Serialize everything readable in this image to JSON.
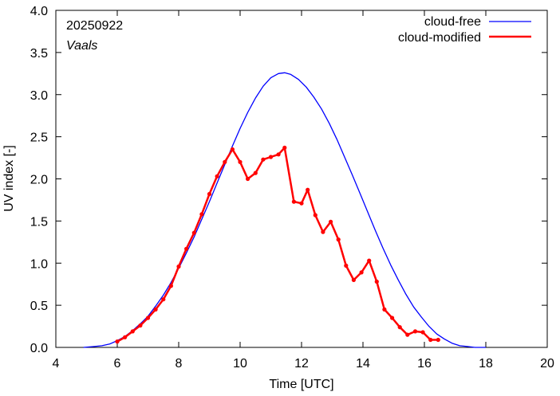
{
  "chart_data": {
    "type": "line",
    "title": "",
    "xlabel": "Time  [UTC]",
    "ylabel": "UV index  [-]",
    "xlim": [
      4,
      20
    ],
    "ylim": [
      0,
      4.0
    ],
    "xticks": [
      4,
      6,
      8,
      10,
      12,
      14,
      16,
      18,
      20
    ],
    "xtick_labels": [
      "4",
      "6",
      "8",
      "10",
      "12",
      "14",
      "16",
      "18",
      "20"
    ],
    "yticks": [
      0,
      0.5,
      1.0,
      1.5,
      2.0,
      2.5,
      3.0,
      3.5,
      4.0
    ],
    "ytick_labels": [
      "0.0",
      "0.5",
      "1.0",
      "1.5",
      "2.0",
      "2.5",
      "3.0",
      "3.5",
      "4.0"
    ],
    "grid": false,
    "legend_position": "top-right",
    "annotations": [
      "20250922",
      "Vaals"
    ],
    "series": [
      {
        "name": "cloud-free",
        "color": "#0000ff",
        "style": "line",
        "x": [
          4.9,
          5.25,
          5.5,
          5.75,
          6.0,
          6.25,
          6.5,
          6.75,
          7.0,
          7.25,
          7.5,
          7.75,
          8.0,
          8.25,
          8.5,
          8.75,
          9.0,
          9.25,
          9.5,
          9.75,
          10.0,
          10.25,
          10.5,
          10.75,
          11.0,
          11.25,
          11.45,
          11.65,
          11.9,
          12.15,
          12.4,
          12.65,
          12.9,
          13.15,
          13.4,
          13.65,
          13.9,
          14.15,
          14.4,
          14.65,
          14.9,
          15.15,
          15.4,
          15.65,
          15.9,
          16.15,
          16.4,
          16.65,
          16.9,
          17.15,
          17.4,
          17.65,
          18.0
        ],
        "y": [
          0.0,
          0.01,
          0.02,
          0.04,
          0.08,
          0.13,
          0.2,
          0.28,
          0.37,
          0.49,
          0.62,
          0.77,
          0.94,
          1.12,
          1.31,
          1.52,
          1.73,
          1.95,
          2.17,
          2.39,
          2.6,
          2.79,
          2.96,
          3.1,
          3.2,
          3.25,
          3.26,
          3.24,
          3.18,
          3.09,
          2.97,
          2.83,
          2.66,
          2.47,
          2.26,
          2.05,
          1.83,
          1.61,
          1.39,
          1.18,
          0.98,
          0.8,
          0.63,
          0.48,
          0.36,
          0.25,
          0.16,
          0.1,
          0.05,
          0.02,
          0.01,
          0.0,
          0.0
        ]
      },
      {
        "name": "cloud-modified",
        "color": "#ff0000",
        "style": "line+points",
        "x": [
          6.0,
          6.25,
          6.5,
          6.75,
          7.0,
          7.25,
          7.5,
          7.75,
          8.0,
          8.25,
          8.5,
          8.75,
          9.0,
          9.25,
          9.5,
          9.75,
          10.0,
          10.25,
          10.5,
          10.75,
          11.0,
          11.25,
          11.45,
          11.75,
          12.0,
          12.2,
          12.45,
          12.7,
          12.95,
          13.2,
          13.45,
          13.7,
          13.95,
          14.2,
          14.45,
          14.7,
          14.95,
          15.2,
          15.45,
          15.7,
          15.95,
          16.2,
          16.45
        ],
        "y": [
          0.07,
          0.12,
          0.19,
          0.26,
          0.35,
          0.45,
          0.57,
          0.73,
          0.96,
          1.17,
          1.36,
          1.58,
          1.82,
          2.03,
          2.2,
          2.35,
          2.2,
          2.0,
          2.07,
          2.23,
          2.26,
          2.29,
          2.37,
          1.73,
          1.71,
          1.87,
          1.57,
          1.37,
          1.49,
          1.28,
          0.97,
          0.8,
          0.89,
          1.03,
          0.78,
          0.45,
          0.35,
          0.24,
          0.15,
          0.19,
          0.18,
          0.09,
          0.09
        ]
      }
    ]
  }
}
